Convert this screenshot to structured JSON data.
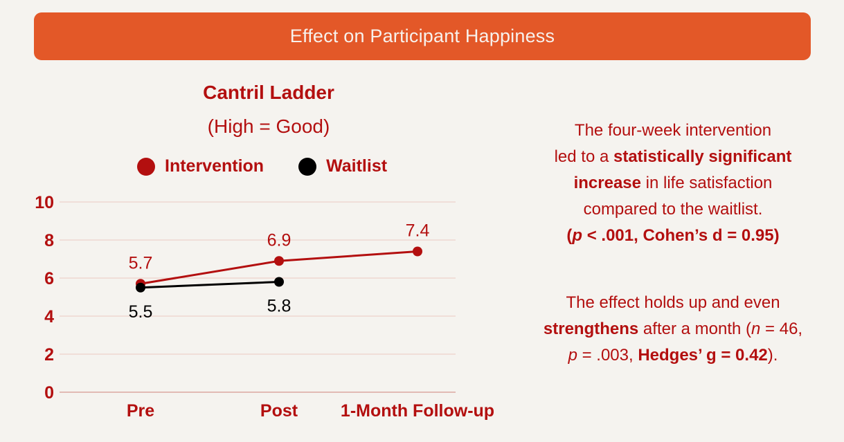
{
  "banner": {
    "title": "Effect on Participant Happiness"
  },
  "colors": {
    "banner": "#e35828",
    "accent": "#b30f0f",
    "intervention": "#b30f0f",
    "waitlist": "#000000",
    "gridline": "#ecc8c2",
    "background": "#f5f3ef"
  },
  "chart_data": {
    "type": "line",
    "title": "Cantril Ladder",
    "subtitle": "(High = Good)",
    "xlabel": "",
    "ylabel": "",
    "categories": [
      "Pre",
      "Post",
      "1-Month Follow-up"
    ],
    "ylim": [
      0,
      10
    ],
    "yticks": [
      0,
      2,
      4,
      6,
      8,
      10
    ],
    "grid": true,
    "legend_position": "top",
    "series": [
      {
        "name": "Intervention",
        "color": "#b30f0f",
        "values": [
          5.7,
          6.9,
          7.4
        ],
        "labels": [
          "5.7",
          "6.9",
          "7.4"
        ],
        "label_position": "above"
      },
      {
        "name": "Waitlist",
        "color": "#000000",
        "values": [
          5.5,
          5.8,
          null
        ],
        "labels": [
          "5.5",
          "5.8",
          null
        ],
        "label_position": "below"
      }
    ]
  },
  "side_text": {
    "para1": {
      "line1": "The four-week intervention",
      "line2_pre": "led to a ",
      "line2_bold": "statistically significant",
      "line3_bold": "increase",
      "line3_post": " in life satisfaction",
      "line4": "compared to the waitlist.",
      "line5_open": "(",
      "line5_p": "p",
      "line5_rest": " < .001, Cohen’s d = 0.95)"
    },
    "para2": {
      "line1": "The effect holds up and even",
      "line2_bold": "strengthens",
      "line2_mid": " after a month (",
      "line2_n": "n",
      "line2_end": " = 46,",
      "line3_p": "p",
      "line3_mid": " = .003, ",
      "line3_bold": "Hedges’ g = 0.42",
      "line3_end": ")."
    }
  }
}
